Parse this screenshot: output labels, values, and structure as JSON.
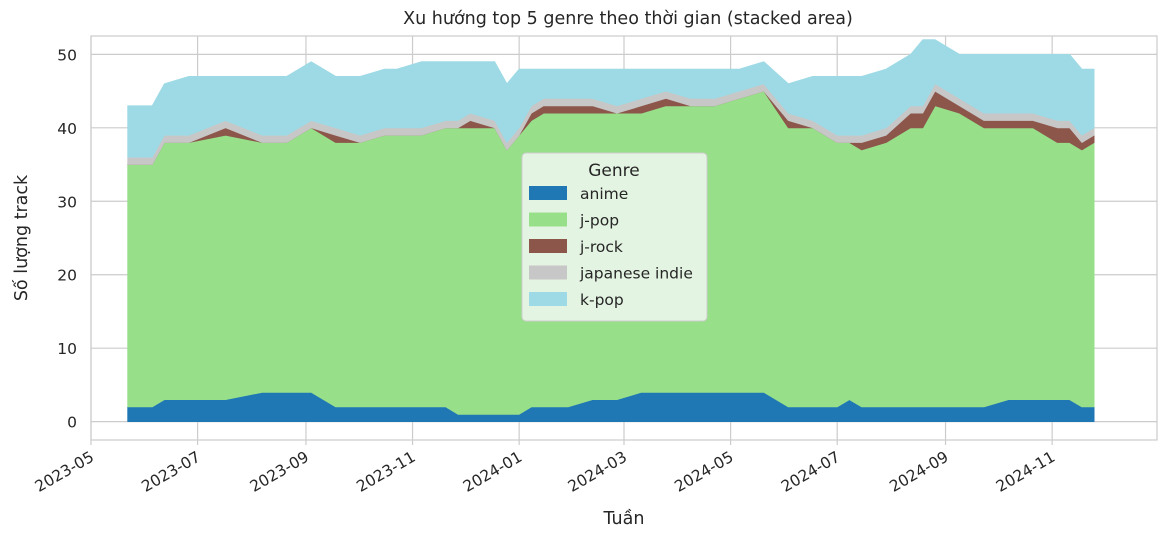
{
  "chart_data": {
    "type": "area",
    "stacked": true,
    "title": "Xu hướng top 5 genre theo thời gian (stacked area)",
    "xlabel": "Tuần",
    "ylabel": "Số lượng track",
    "ylim": [
      -2.5,
      52.5
    ],
    "yticks": [
      0,
      10,
      20,
      30,
      40,
      50
    ],
    "xlim": [
      "2023-05-01",
      "2024-12-31"
    ],
    "xticks": [
      "2023-05",
      "2023-07",
      "2023-09",
      "2023-11",
      "2024-01",
      "2024-03",
      "2024-05",
      "2024-07",
      "2024-09",
      "2024-11"
    ],
    "grid": true,
    "legend": {
      "title": "Genre",
      "placement": "center"
    },
    "x": [
      "2023-05-22",
      "2023-06-05",
      "2023-06-12",
      "2023-06-26",
      "2023-07-17",
      "2023-08-07",
      "2023-08-21",
      "2023-09-04",
      "2023-09-18",
      "2023-10-02",
      "2023-10-16",
      "2023-10-23",
      "2023-11-06",
      "2023-11-20",
      "2023-11-27",
      "2023-12-04",
      "2023-12-18",
      "2023-12-25",
      "2024-01-01",
      "2024-01-08",
      "2024-01-15",
      "2024-01-29",
      "2024-02-12",
      "2024-02-26",
      "2024-03-11",
      "2024-03-25",
      "2024-04-08",
      "2024-04-22",
      "2024-05-06",
      "2024-05-20",
      "2024-06-03",
      "2024-06-17",
      "2024-07-01",
      "2024-07-08",
      "2024-07-15",
      "2024-07-29",
      "2024-08-12",
      "2024-08-19",
      "2024-08-26",
      "2024-09-09",
      "2024-09-23",
      "2024-10-07",
      "2024-10-21",
      "2024-11-04",
      "2024-11-11",
      "2024-11-18",
      "2024-11-25"
    ],
    "series": [
      {
        "name": "anime",
        "color": "#1f77b4",
        "values": [
          2,
          2,
          3,
          3,
          3,
          4,
          4,
          4,
          2,
          2,
          2,
          2,
          2,
          2,
          1,
          1,
          1,
          1,
          1,
          2,
          2,
          2,
          3,
          3,
          4,
          4,
          4,
          4,
          4,
          4,
          2,
          2,
          2,
          3,
          2,
          2,
          2,
          2,
          2,
          2,
          2,
          3,
          3,
          3,
          3,
          2,
          2
        ]
      },
      {
        "name": "j-pop",
        "color": "#98df8a",
        "values": [
          33,
          33,
          35,
          35,
          36,
          34,
          34,
          36,
          36,
          36,
          37,
          37,
          37,
          38,
          39,
          39,
          39,
          36,
          38,
          39,
          40,
          40,
          39,
          39,
          38,
          39,
          39,
          39,
          40,
          41,
          38,
          38,
          36,
          35,
          35,
          36,
          38,
          38,
          41,
          40,
          38,
          37,
          37,
          35,
          35,
          35,
          36
        ]
      },
      {
        "name": "j-rock",
        "color": "#8c564b",
        "values": [
          0,
          0,
          0,
          0,
          1,
          0,
          0,
          0,
          1,
          0,
          0,
          0,
          0,
          0,
          0,
          1,
          0,
          0,
          0,
          1,
          1,
          1,
          1,
          0,
          1,
          1,
          0,
          0,
          0,
          0,
          1,
          0,
          0,
          0,
          1,
          1,
          2,
          2,
          2,
          1,
          1,
          1,
          1,
          2,
          2,
          1,
          1
        ]
      },
      {
        "name": "japanese indie",
        "color": "#c7c7c7",
        "values": [
          1,
          1,
          1,
          1,
          1,
          1,
          1,
          1,
          1,
          1,
          1,
          1,
          1,
          1,
          1,
          1,
          1,
          1,
          1,
          1,
          1,
          1,
          1,
          1,
          1,
          1,
          1,
          1,
          1,
          1,
          1,
          1,
          1,
          1,
          1,
          1,
          1,
          1,
          1,
          1,
          1,
          1,
          1,
          1,
          1,
          1,
          1
        ]
      },
      {
        "name": "k-pop",
        "color": "#9edae5",
        "values": [
          7,
          7,
          7,
          8,
          6,
          8,
          8,
          8,
          7,
          8,
          8,
          8,
          9,
          8,
          8,
          7,
          8,
          8,
          8,
          5,
          4,
          4,
          4,
          5,
          4,
          3,
          4,
          4,
          3,
          3,
          4,
          6,
          8,
          8,
          8,
          8,
          7,
          9,
          6,
          6,
          8,
          8,
          8,
          9,
          9,
          9,
          8
        ]
      }
    ]
  }
}
